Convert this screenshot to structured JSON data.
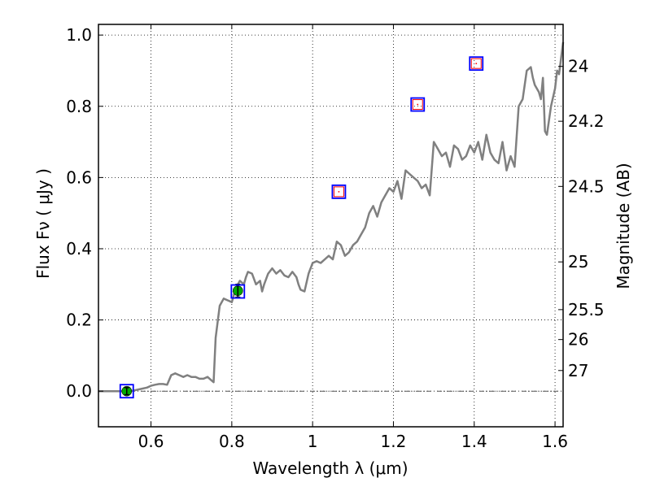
{
  "chart_data": {
    "type": "line",
    "xlabel": "Wavelength  λ (μm)",
    "ylabel": "Flux  Fν  ( μJy )",
    "y2label": "Magnitude (AB)",
    "xlim": [
      0.47,
      1.62
    ],
    "ylim": [
      -0.1,
      1.03
    ],
    "grid": true,
    "grid_style": "dotted",
    "x_ticks": [
      0.6,
      0.8,
      1.0,
      1.2,
      1.4,
      1.6
    ],
    "x_tick_labels": [
      "0.6",
      "0.8",
      "1",
      "1.2",
      "1.4",
      "1.6"
    ],
    "y_ticks": [
      0.0,
      0.2,
      0.4,
      0.6,
      0.8,
      1.0
    ],
    "y_tick_labels": [
      "0.0",
      "0.2",
      "0.4",
      "0.6",
      "0.8",
      "1.0"
    ],
    "mag_ticks": [
      {
        "label": "24",
        "flux": 0.912
      },
      {
        "label": "24.2",
        "flux": 0.758
      },
      {
        "label": "24.5",
        "flux": 0.575
      },
      {
        "label": "25",
        "flux": 0.363
      },
      {
        "label": "25.5",
        "flux": 0.229
      },
      {
        "label": "26",
        "flux": 0.145
      },
      {
        "label": "27",
        "flux": 0.058
      }
    ],
    "zero_line": {
      "y": 0.0,
      "style": "dash-dot",
      "color": "#555555"
    },
    "sed": {
      "color": "#808080",
      "x": [
        0.47,
        0.55,
        0.57,
        0.59,
        0.6,
        0.61,
        0.62,
        0.63,
        0.64,
        0.65,
        0.66,
        0.67,
        0.68,
        0.69,
        0.7,
        0.71,
        0.72,
        0.73,
        0.74,
        0.75,
        0.755,
        0.76,
        0.77,
        0.78,
        0.79,
        0.8,
        0.81,
        0.82,
        0.83,
        0.835,
        0.84,
        0.85,
        0.86,
        0.87,
        0.875,
        0.88,
        0.89,
        0.9,
        0.91,
        0.92,
        0.93,
        0.94,
        0.95,
        0.96,
        0.965,
        0.97,
        0.98,
        0.99,
        1.0,
        1.01,
        1.02,
        1.03,
        1.04,
        1.05,
        1.06,
        1.07,
        1.08,
        1.09,
        1.1,
        1.11,
        1.12,
        1.13,
        1.14,
        1.15,
        1.16,
        1.17,
        1.18,
        1.19,
        1.2,
        1.21,
        1.22,
        1.23,
        1.24,
        1.25,
        1.26,
        1.27,
        1.28,
        1.29,
        1.3,
        1.31,
        1.32,
        1.33,
        1.34,
        1.35,
        1.36,
        1.37,
        1.38,
        1.39,
        1.4,
        1.41,
        1.42,
        1.43,
        1.44,
        1.45,
        1.46,
        1.47,
        1.48,
        1.49,
        1.5,
        1.51,
        1.52,
        1.53,
        1.54,
        1.545,
        1.55,
        1.56,
        1.565,
        1.57,
        1.575,
        1.58,
        1.59,
        1.6,
        1.605,
        1.61,
        1.62
      ],
      "y": [
        0.0,
        0.0,
        0.005,
        0.01,
        0.015,
        0.018,
        0.02,
        0.02,
        0.018,
        0.045,
        0.05,
        0.045,
        0.04,
        0.045,
        0.04,
        0.04,
        0.035,
        0.035,
        0.04,
        0.03,
        0.025,
        0.15,
        0.24,
        0.26,
        0.255,
        0.25,
        0.29,
        0.31,
        0.3,
        0.32,
        0.335,
        0.33,
        0.3,
        0.31,
        0.28,
        0.3,
        0.33,
        0.345,
        0.33,
        0.34,
        0.325,
        0.32,
        0.335,
        0.32,
        0.3,
        0.285,
        0.28,
        0.33,
        0.36,
        0.365,
        0.36,
        0.37,
        0.38,
        0.37,
        0.42,
        0.41,
        0.38,
        0.39,
        0.41,
        0.42,
        0.44,
        0.46,
        0.5,
        0.52,
        0.49,
        0.53,
        0.55,
        0.57,
        0.56,
        0.59,
        0.54,
        0.62,
        0.61,
        0.6,
        0.59,
        0.57,
        0.58,
        0.55,
        0.7,
        0.68,
        0.66,
        0.67,
        0.63,
        0.69,
        0.68,
        0.65,
        0.66,
        0.69,
        0.67,
        0.7,
        0.65,
        0.72,
        0.67,
        0.65,
        0.64,
        0.7,
        0.62,
        0.66,
        0.63,
        0.8,
        0.82,
        0.9,
        0.91,
        0.88,
        0.86,
        0.84,
        0.82,
        0.88,
        0.73,
        0.72,
        0.8,
        0.85,
        0.9,
        0.89,
        0.98
      ]
    },
    "model_points": {
      "marker": "square",
      "edge_color": "#0000ff",
      "x": [
        0.54,
        0.815,
        1.065,
        1.26,
        1.405
      ],
      "y": [
        0.0,
        0.28,
        0.56,
        0.805,
        0.92
      ]
    },
    "upper_limit_points": {
      "marker": "square",
      "edge_color": "#ff0000",
      "x": [
        1.065,
        1.26,
        1.405
      ],
      "y": [
        0.56,
        0.805,
        0.92
      ]
    },
    "observed_points": {
      "marker": "circle",
      "color": "#00aa00",
      "x": [
        0.54,
        0.815
      ],
      "y": [
        0.0,
        0.282
      ],
      "yerr": [
        0.01,
        0.018
      ]
    }
  }
}
